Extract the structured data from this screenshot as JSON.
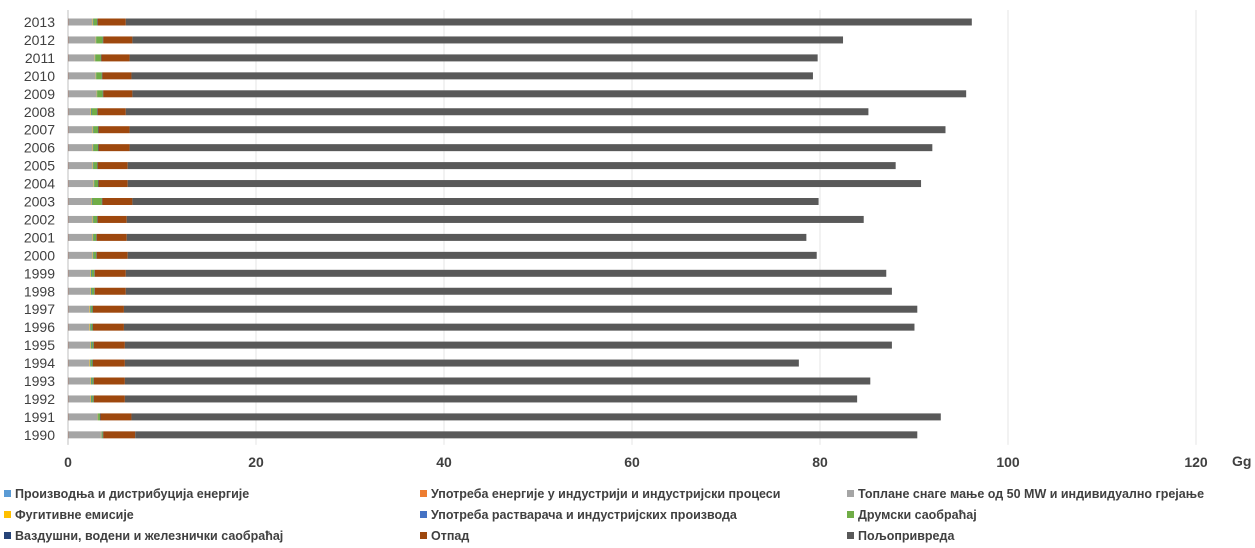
{
  "chart_data": {
    "type": "bar",
    "orientation": "horizontal",
    "stacked": true,
    "xlabel": "Gg",
    "xlim": [
      0,
      120
    ],
    "xticks": [
      "0",
      "20",
      "40",
      "60",
      "80",
      "100",
      "120"
    ],
    "grid": true,
    "legend_position": "bottom",
    "categories": [
      "2013",
      "2012",
      "2011",
      "2010",
      "2009",
      "2008",
      "2007",
      "2006",
      "2005",
      "2004",
      "2003",
      "2002",
      "2001",
      "2000",
      "1999",
      "1998",
      "1997",
      "1996",
      "1995",
      "1994",
      "1993",
      "1992",
      "1991",
      "1990"
    ],
    "series": [
      {
        "name": "Производња и дистрибуција енергије",
        "color": "#5b9bd5",
        "values": [
          0.05,
          0.05,
          0.05,
          0.05,
          0.05,
          0.05,
          0.05,
          0.05,
          0.05,
          0.05,
          0.05,
          0.05,
          0.05,
          0.05,
          0.05,
          0.05,
          0.05,
          0.05,
          0.05,
          0.05,
          0.05,
          0.05,
          0.05,
          0.05
        ]
      },
      {
        "name": "Употреба енергије у индустрији и индустријски процеси",
        "color": "#ed7d31",
        "values": [
          0.05,
          0.05,
          0.05,
          0.05,
          0.05,
          0.05,
          0.05,
          0.05,
          0.05,
          0.05,
          0.05,
          0.05,
          0.05,
          0.05,
          0.05,
          0.05,
          0.05,
          0.05,
          0.05,
          0.05,
          0.05,
          0.05,
          0.05,
          0.05
        ]
      },
      {
        "name": "Топлане снаге мање од 50 MW и индивидуално грејање",
        "color": "#a5a5a5",
        "values": [
          2.5,
          2.8,
          2.7,
          2.8,
          2.9,
          2.3,
          2.5,
          2.5,
          2.5,
          2.6,
          2.4,
          2.5,
          2.5,
          2.5,
          2.3,
          2.3,
          2.2,
          2.2,
          2.3,
          2.2,
          2.3,
          2.3,
          3.0,
          3.4
        ]
      },
      {
        "name": "Фугитивне емисије",
        "color": "#ffc000",
        "values": [
          0.05,
          0.05,
          0.05,
          0.05,
          0.05,
          0.05,
          0.05,
          0.05,
          0.05,
          0.05,
          0.05,
          0.05,
          0.05,
          0.05,
          0.05,
          0.05,
          0.05,
          0.05,
          0.05,
          0.05,
          0.05,
          0.05,
          0.05,
          0.05
        ]
      },
      {
        "name": "Употреба растварача и индустријских производа",
        "color": "#4472c4",
        "values": [
          0.05,
          0.05,
          0.05,
          0.05,
          0.05,
          0.05,
          0.05,
          0.05,
          0.05,
          0.05,
          0.05,
          0.05,
          0.05,
          0.05,
          0.05,
          0.05,
          0.05,
          0.05,
          0.05,
          0.05,
          0.05,
          0.05,
          0.05,
          0.05
        ]
      },
      {
        "name": "Друмски саобраћај",
        "color": "#70ad47",
        "values": [
          0.4,
          0.7,
          0.6,
          0.6,
          0.6,
          0.6,
          0.5,
          0.5,
          0.4,
          0.4,
          1.0,
          0.4,
          0.3,
          0.3,
          0.3,
          0.3,
          0.2,
          0.2,
          0.2,
          0.2,
          0.2,
          0.2,
          0.2,
          0.1
        ]
      },
      {
        "name": "Ваздушни, водени и железнички саобраћај",
        "color": "#264478",
        "values": [
          0.05,
          0.05,
          0.05,
          0.05,
          0.05,
          0.05,
          0.05,
          0.05,
          0.05,
          0.05,
          0.05,
          0.05,
          0.05,
          0.05,
          0.05,
          0.05,
          0.05,
          0.05,
          0.05,
          0.05,
          0.05,
          0.05,
          0.05,
          0.05
        ]
      },
      {
        "name": "Отпад",
        "color": "#9e480e",
        "values": [
          3.0,
          3.1,
          3.0,
          3.1,
          3.1,
          3.0,
          3.3,
          3.3,
          3.2,
          3.1,
          3.2,
          3.1,
          3.2,
          3.3,
          3.3,
          3.3,
          3.3,
          3.3,
          3.3,
          3.4,
          3.3,
          3.3,
          3.3,
          3.4
        ]
      },
      {
        "name": "Пољопривреда",
        "color": "#595959",
        "values": [
          90.0,
          75.6,
          73.2,
          72.5,
          88.7,
          79.0,
          86.8,
          85.4,
          81.7,
          84.4,
          73.0,
          78.4,
          72.3,
          73.3,
          80.9,
          81.5,
          84.4,
          84.1,
          81.6,
          71.7,
          79.3,
          77.9,
          86.1,
          83.2
        ]
      }
    ]
  }
}
